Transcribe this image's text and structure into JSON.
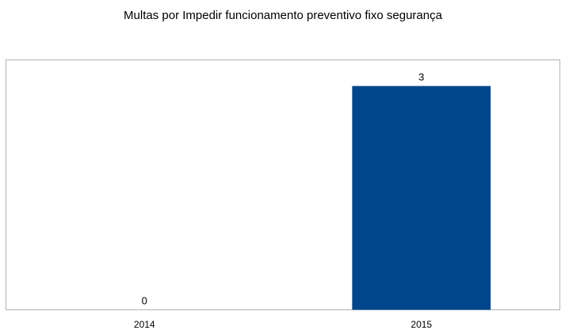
{
  "chart_data": {
    "type": "bar",
    "title": "Multas por Impedir funcionamento preventivo fixo segurança",
    "xlabel": "",
    "ylabel": "",
    "categories": [
      "2014",
      "2015"
    ],
    "values": [
      0,
      3
    ],
    "data_labels": [
      "0",
      "3"
    ],
    "ylim": [
      0,
      3.35
    ],
    "grid": false,
    "legend": "none",
    "bar_color": "#00468B",
    "plot_border_color": "#B3B3B3"
  }
}
